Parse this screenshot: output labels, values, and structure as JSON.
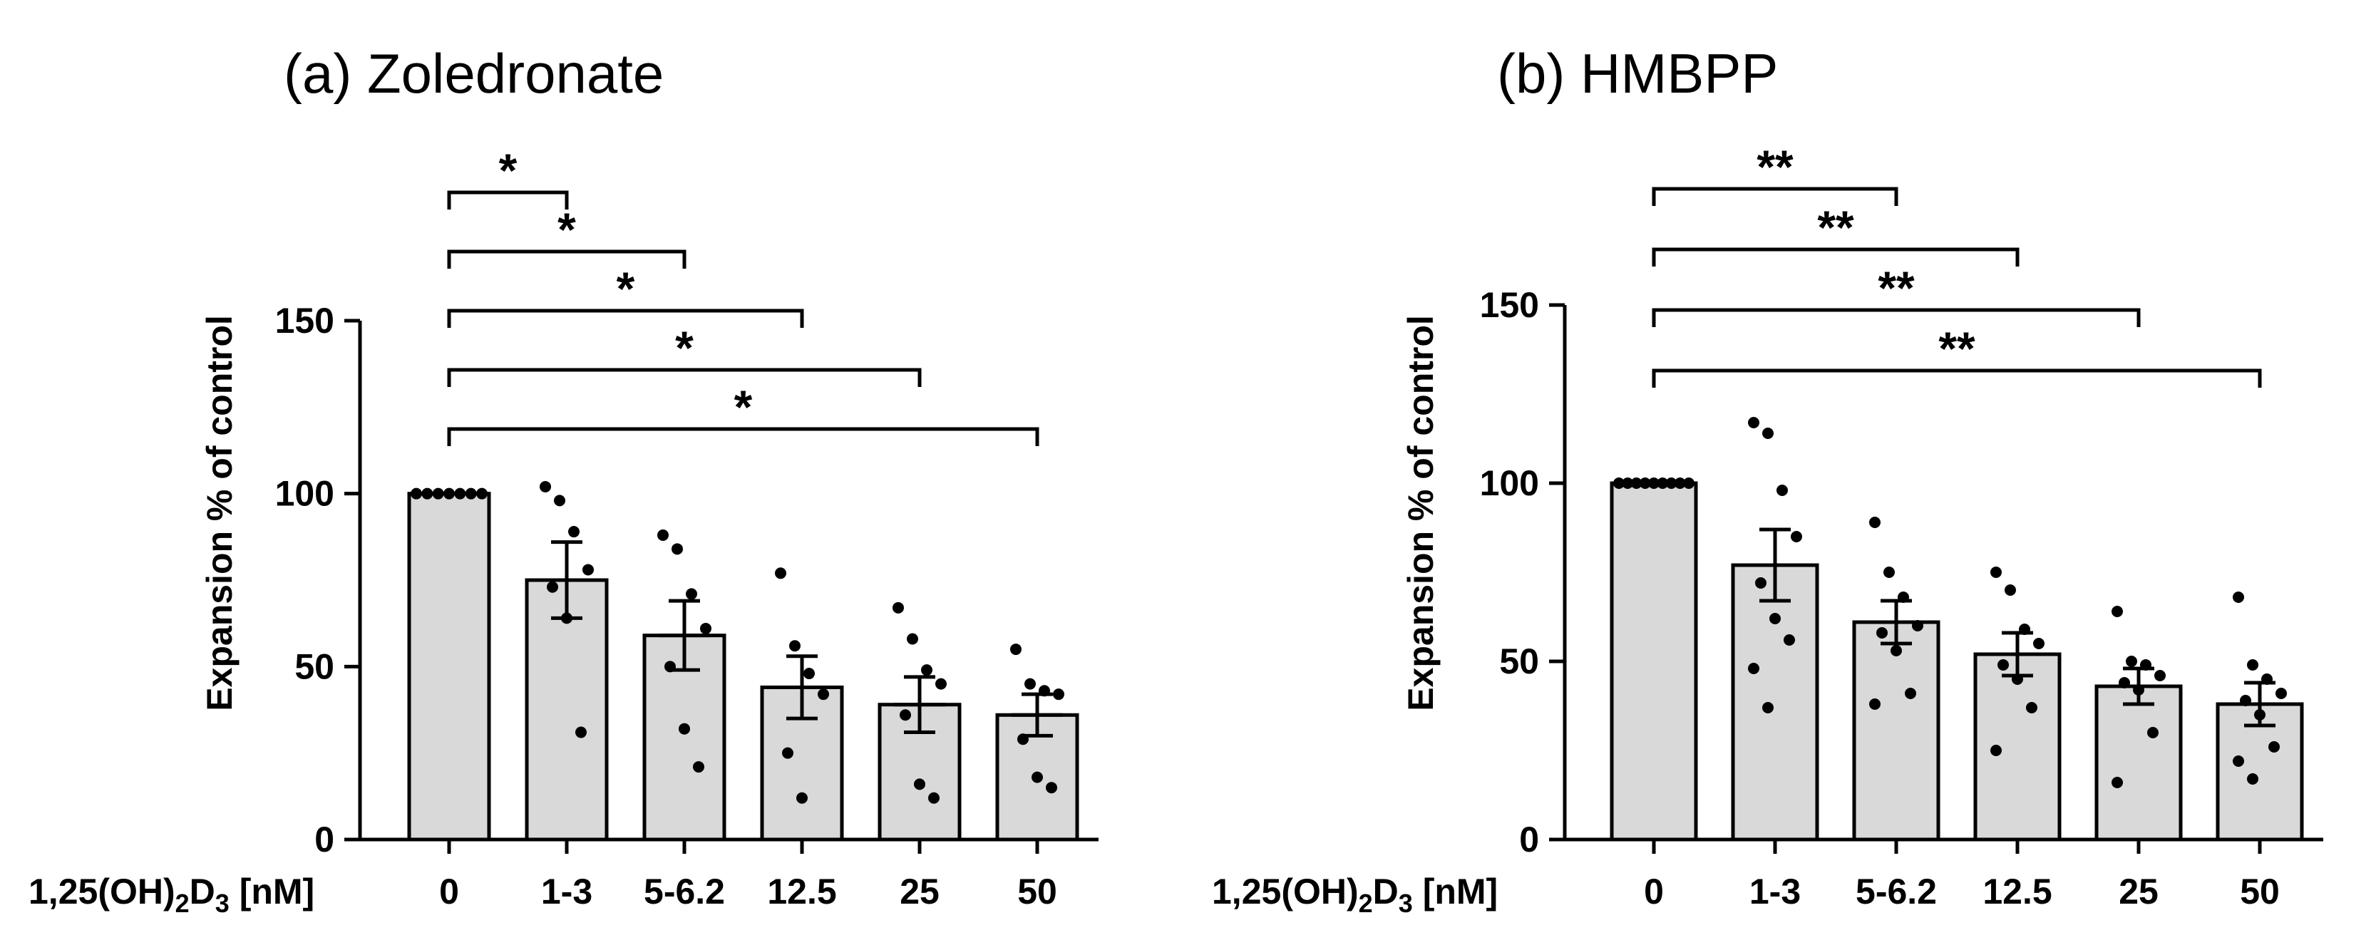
{
  "chart_data": [
    {
      "type": "bar",
      "title": "(a) Zoledronate",
      "xlabel": "1,25(OH)",
      "xlabel_sub": "2",
      "xlabel_mid": "D",
      "xlabel_sub2": "3",
      "xlabel_unit": " [nM]",
      "ylabel": "Expansion % of control",
      "ylim": [
        0,
        150
      ],
      "yticks": [
        0,
        50,
        100,
        150
      ],
      "categories": [
        "0",
        "1-3",
        "5-6.2",
        "12.5",
        "25",
        "50"
      ],
      "values": [
        100,
        75,
        59,
        44,
        39,
        36
      ],
      "sem": [
        0,
        11,
        10,
        9,
        8,
        6
      ],
      "points": [
        [
          100,
          100,
          100,
          100,
          100,
          100,
          100
        ],
        [
          102,
          98,
          89,
          78,
          73,
          64,
          31
        ],
        [
          88,
          84,
          71,
          61,
          50,
          32,
          21
        ],
        [
          77,
          56,
          48,
          42,
          25,
          12
        ],
        [
          67,
          58,
          49,
          45,
          36,
          16,
          12
        ],
        [
          55,
          45,
          43,
          42,
          29,
          18,
          15
        ]
      ],
      "significance": [
        {
          "from": "0",
          "to": "1-3",
          "label": "*"
        },
        {
          "from": "0",
          "to": "5-6.2",
          "label": "*"
        },
        {
          "from": "0",
          "to": "12.5",
          "label": "*"
        },
        {
          "from": "0",
          "to": "25",
          "label": "*"
        },
        {
          "from": "0",
          "to": "50",
          "label": "*"
        }
      ],
      "bar_color": "#d9d9d9"
    },
    {
      "type": "bar",
      "title": "(b)  HMBPP",
      "xlabel": "1,25(OH)",
      "xlabel_sub": "2",
      "xlabel_mid": "D",
      "xlabel_sub2": "3",
      "xlabel_unit": " [nM]",
      "ylabel": "Expansion % of control",
      "ylim": [
        0,
        150
      ],
      "yticks": [
        0,
        50,
        100,
        150
      ],
      "categories": [
        "0",
        "1-3",
        "5-6.2",
        "12.5",
        "25",
        "50"
      ],
      "values": [
        100,
        77,
        61,
        52,
        43,
        38
      ],
      "sem": [
        0,
        10,
        6,
        6,
        5,
        6
      ],
      "points": [
        [
          100,
          100,
          100,
          100,
          100,
          100,
          100,
          100,
          100
        ],
        [
          117,
          114,
          98,
          85,
          72,
          62,
          56,
          48,
          37
        ],
        [
          89,
          75,
          68,
          60,
          58,
          53,
          41,
          38
        ],
        [
          75,
          70,
          59,
          55,
          49,
          45,
          37,
          25
        ],
        [
          64,
          50,
          49,
          46,
          44,
          42,
          30,
          16
        ],
        [
          68,
          49,
          45,
          41,
          39,
          35,
          26,
          22,
          17
        ]
      ],
      "significance": [
        {
          "from": "0",
          "to": "5-6.2",
          "label": "**"
        },
        {
          "from": "0",
          "to": "12.5",
          "label": "**"
        },
        {
          "from": "0",
          "to": "25",
          "label": "**"
        },
        {
          "from": "0",
          "to": "50",
          "label": "**"
        }
      ],
      "bar_color": "#d9d9d9"
    }
  ]
}
